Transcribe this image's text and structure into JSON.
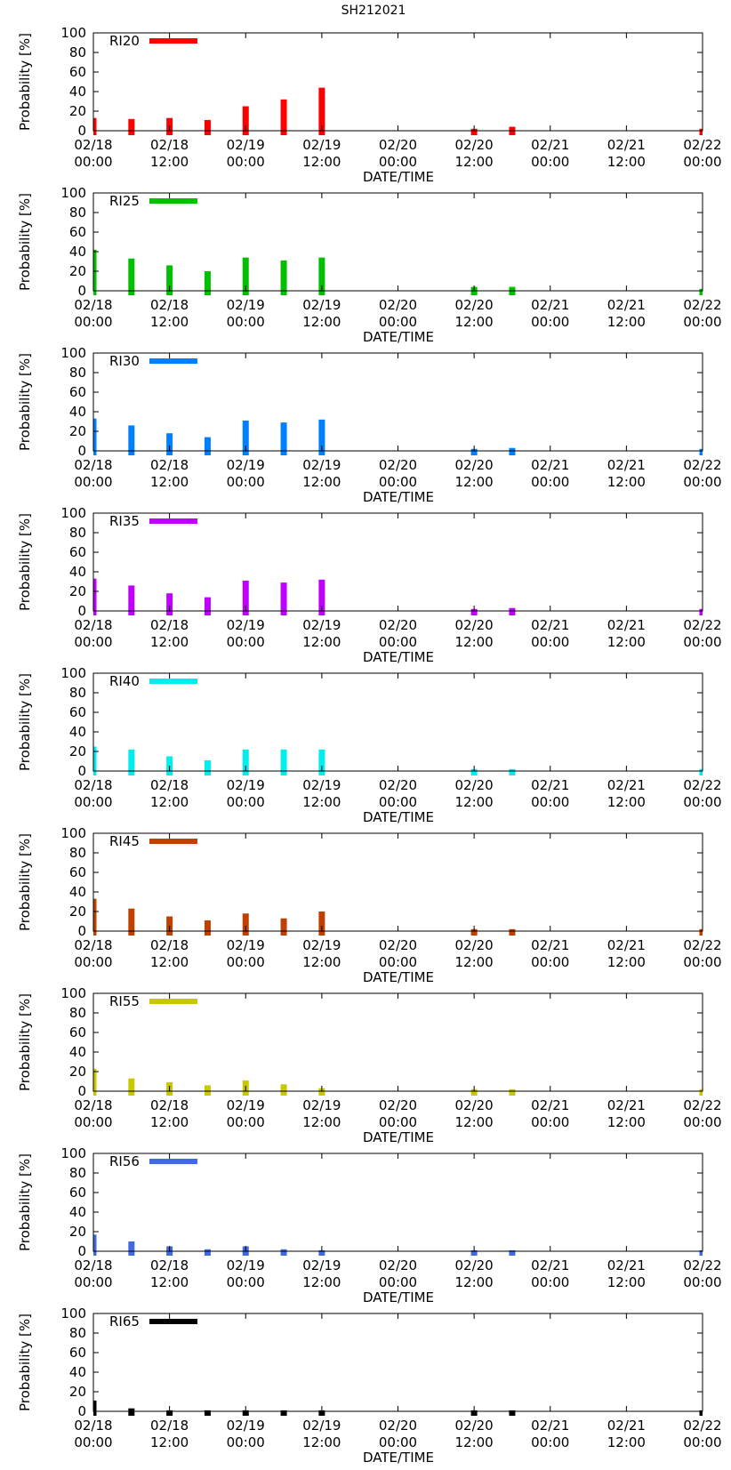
{
  "chart_data": {
    "type": "bar",
    "title": "SH212021",
    "ylabel": "Probability [%]",
    "xlabel": "DATE/TIME",
    "ylim": [
      0,
      100
    ],
    "y_ticks": [
      "100",
      "80",
      "60",
      "40",
      "20",
      "0"
    ],
    "x_ticks": [
      {
        "date": "02/18",
        "time": "00:00"
      },
      {
        "date": "02/18",
        "time": "12:00"
      },
      {
        "date": "02/19",
        "time": "00:00"
      },
      {
        "date": "02/19",
        "time": "12:00"
      },
      {
        "date": "02/20",
        "time": "00:00"
      },
      {
        "date": "02/20",
        "time": "12:00"
      },
      {
        "date": "02/21",
        "time": "00:00"
      },
      {
        "date": "02/21",
        "time": "12:00"
      },
      {
        "date": "02/22",
        "time": "00:00"
      }
    ],
    "x_hours": [
      0,
      6,
      12,
      18,
      24,
      30,
      36,
      60,
      66,
      96
    ],
    "x_range_hours": [
      0,
      96
    ],
    "panels": [
      {
        "name": "RI20",
        "color": "#ff0000",
        "values": [
          13,
          12,
          13,
          11,
          25,
          32,
          44,
          2,
          4,
          2
        ]
      },
      {
        "name": "RI25",
        "color": "#00c000",
        "values": [
          42,
          33,
          26,
          20,
          34,
          31,
          34,
          4,
          4,
          2
        ]
      },
      {
        "name": "RI30",
        "color": "#0080ff",
        "values": [
          33,
          26,
          18,
          14,
          31,
          29,
          32,
          2,
          3,
          2
        ]
      },
      {
        "name": "RI35",
        "color": "#c000ff",
        "values": [
          33,
          26,
          18,
          14,
          31,
          29,
          32,
          2,
          3,
          2
        ]
      },
      {
        "name": "RI40",
        "color": "#00eeee",
        "values": [
          25,
          22,
          15,
          11,
          22,
          22,
          22,
          2,
          2,
          2
        ]
      },
      {
        "name": "RI45",
        "color": "#c04000",
        "values": [
          33,
          23,
          15,
          11,
          18,
          13,
          20,
          2,
          2,
          2
        ]
      },
      {
        "name": "RI55",
        "color": "#c8c800",
        "values": [
          23,
          13,
          9,
          6,
          11,
          7,
          3,
          2,
          2,
          2
        ]
      },
      {
        "name": "RI56",
        "color": "#4169e1",
        "values": [
          17,
          10,
          5,
          2,
          5,
          2,
          1,
          1,
          1,
          1
        ]
      },
      {
        "name": "RI65",
        "color": "#000000",
        "values": [
          11,
          3,
          1,
          1,
          1,
          1,
          1,
          1,
          1,
          1
        ]
      }
    ]
  }
}
